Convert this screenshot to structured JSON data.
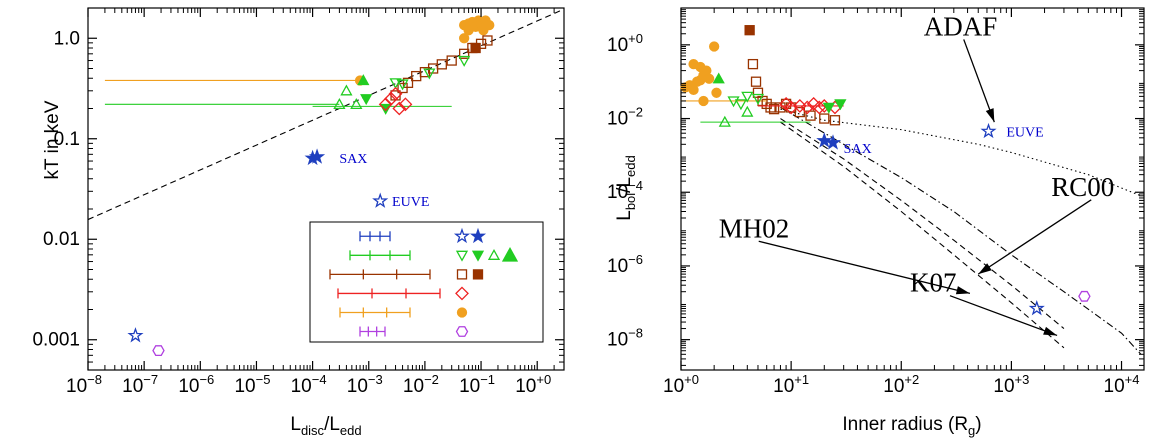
{
  "chart_data": [
    {
      "type": "scatter",
      "xlabel_main": "L",
      "xlabel_sub1": "disc",
      "xlabel_sep": "/L",
      "xlabel_sub2": "edd",
      "ylabel": "kT in keV",
      "xscale": "log",
      "yscale": "log",
      "xlim": [
        1e-08,
        3
      ],
      "ylim": [
        0.0005,
        2
      ],
      "xticks": [
        {
          "v": 1e-08,
          "base": "10",
          "exp": "−8"
        },
        {
          "v": 1e-07,
          "base": "10",
          "exp": "−7"
        },
        {
          "v": 1e-06,
          "base": "10",
          "exp": "−6"
        },
        {
          "v": 1e-05,
          "base": "10",
          "exp": "−5"
        },
        {
          "v": 0.0001,
          "base": "10",
          "exp": "−4"
        },
        {
          "v": 0.001,
          "base": "10",
          "exp": "−3"
        },
        {
          "v": 0.01,
          "base": "10",
          "exp": "−2"
        },
        {
          "v": 0.1,
          "base": "10",
          "exp": "−1"
        },
        {
          "v": 1,
          "base": "10",
          "exp": "+0"
        }
      ],
      "yticks": [
        {
          "v": 0.001,
          "label": "0.001"
        },
        {
          "v": 0.01,
          "label": "0.01"
        },
        {
          "v": 0.1,
          "label": "0.1"
        },
        {
          "v": 1,
          "label": "1.0"
        }
      ],
      "annotations": [
        {
          "text": "SAX",
          "x": 0.0003,
          "y": 0.064
        },
        {
          "text": "EUVE",
          "x": 0.0026,
          "y": 0.024
        }
      ],
      "relation_line": {
        "style": "dashed",
        "color": "#000000",
        "x": [
          1e-08,
          3
        ],
        "y": [
          0.0157,
          1.95
        ]
      },
      "colors": {
        "blue": "#1f3fbf",
        "green": "#22cc22",
        "brown": "#993300",
        "red": "#ee2222",
        "orange": "#f0a020",
        "purple": "#b040e0"
      },
      "series": [
        {
          "color": "orange",
          "marker": "circle-filled",
          "points": [
            [
              0.05,
              1.35
            ],
            [
              0.06,
              1.4
            ],
            [
              0.07,
              1.45
            ],
            [
              0.08,
              1.3
            ],
            [
              0.09,
              1.5
            ],
            [
              0.1,
              1.4
            ],
            [
              0.12,
              1.5
            ],
            [
              0.14,
              1.35
            ],
            [
              0.06,
              1.2
            ],
            [
              0.11,
              1.2
            ],
            [
              0.05,
              1.0
            ],
            [
              0.0007,
              0.38
            ]
          ],
          "err_x": [
            [
              2e-08,
              0.0007,
              0.38
            ]
          ]
        },
        {
          "color": "brown",
          "marker": "square-open",
          "points": [
            [
              0.003,
              0.27
            ],
            [
              0.004,
              0.32
            ],
            [
              0.005,
              0.36
            ],
            [
              0.007,
              0.42
            ],
            [
              0.01,
              0.46
            ],
            [
              0.014,
              0.5
            ],
            [
              0.02,
              0.55
            ],
            [
              0.03,
              0.6
            ],
            [
              0.05,
              0.7
            ],
            [
              0.07,
              0.8
            ],
            [
              0.1,
              0.88
            ],
            [
              0.13,
              0.95
            ]
          ]
        },
        {
          "color": "brown",
          "marker": "square-filled",
          "points": [
            [
              0.08,
              0.8
            ]
          ]
        },
        {
          "color": "green",
          "marker": "tri-up-filled",
          "points": [
            [
              0.0008,
              0.38
            ]
          ]
        },
        {
          "color": "green",
          "marker": "tri-down-open",
          "points": [
            [
              0.003,
              0.36
            ],
            [
              0.004,
              0.35
            ],
            [
              0.012,
              0.45
            ],
            [
              0.05,
              0.6
            ]
          ]
        },
        {
          "color": "green",
          "marker": "tri-down-filled",
          "points": [
            [
              0.002,
              0.2
            ],
            [
              0.0009,
              0.25
            ]
          ]
        },
        {
          "color": "green",
          "marker": "tri-up-open",
          "points": [
            [
              0.0003,
              0.22
            ],
            [
              0.0006,
              0.22
            ],
            [
              0.0004,
              0.3
            ]
          ],
          "err_x": [
            [
              2e-08,
              0.0003,
              0.22
            ],
            [
              0.0001,
              0.03,
              0.21
            ]
          ]
        },
        {
          "color": "red",
          "marker": "diamond-open",
          "points": [
            [
              0.002,
              0.22
            ],
            [
              0.0025,
              0.25
            ],
            [
              0.003,
              0.28
            ],
            [
              0.0035,
              0.2
            ],
            [
              0.0045,
              0.22
            ]
          ]
        },
        {
          "color": "blue",
          "marker": "star-filled",
          "points": [
            [
              0.0001,
              0.064
            ],
            [
              0.00012,
              0.066
            ]
          ]
        },
        {
          "color": "blue",
          "marker": "star-open",
          "points": [
            [
              0.0016,
              0.024
            ],
            [
              7e-08,
              0.0011
            ]
          ]
        },
        {
          "color": "purple",
          "marker": "hexagon-open",
          "points": [
            [
              1.8e-07,
              0.00078
            ]
          ]
        }
      ],
      "legend": {
        "placement": "bottom-right",
        "rows": [
          {
            "color": "blue",
            "markers": [
              "star-open",
              "star-filled"
            ]
          },
          {
            "color": "green",
            "markers": [
              "tri-down-open",
              "tri-down-filled",
              "tri-up-open",
              "tri-up-filled-big"
            ]
          },
          {
            "color": "brown",
            "markers": [
              "square-open",
              "square-filled"
            ]
          },
          {
            "color": "red",
            "markers": [
              "diamond-open"
            ]
          },
          {
            "color": "orange",
            "markers": [
              "circle-filled"
            ]
          },
          {
            "color": "purple",
            "markers": [
              "hexagon-open"
            ]
          }
        ]
      }
    },
    {
      "type": "scatter",
      "xlabel_main": "Inner radius (R",
      "xlabel_sub": "g",
      "xlabel_end": ")",
      "ylabel_main": "L",
      "ylabel_sub1": "bol",
      "ylabel_sep": "/L",
      "ylabel_sub2": "edd",
      "xscale": "log",
      "yscale": "log",
      "xlim": [
        1,
        16000
      ],
      "ylim": [
        1.5e-09,
        10
      ],
      "xticks": [
        {
          "v": 1,
          "base": "10",
          "exp": "+0"
        },
        {
          "v": 10,
          "base": "10",
          "exp": "+1"
        },
        {
          "v": 100,
          "base": "10",
          "exp": "+2"
        },
        {
          "v": 1000,
          "base": "10",
          "exp": "+3"
        },
        {
          "v": 10000,
          "base": "10",
          "exp": "+4"
        }
      ],
      "yticks": [
        {
          "v": 1e-08,
          "base": "10",
          "exp": "−8"
        },
        {
          "v": 1e-06,
          "base": "10",
          "exp": "−6"
        },
        {
          "v": 0.0001,
          "base": "10",
          "exp": "−4"
        },
        {
          "v": 0.01,
          "base": "10",
          "exp": "−2"
        },
        {
          "v": 1,
          "base": "10",
          "exp": "+0"
        }
      ],
      "annotations": [
        {
          "text": "SAX",
          "x": 30,
          "y": 0.0016
        },
        {
          "text": "EUVE",
          "x": 900,
          "y": 0.0045
        }
      ],
      "models": [
        {
          "label": "ADAF",
          "style": "dotted",
          "x": [
            8,
            20,
            100,
            500,
            1000,
            5000,
            15000
          ],
          "y": [
            0.018,
            0.009,
            0.005,
            0.002,
            0.0012,
            0.0003,
            8e-05
          ],
          "label_pos": [
            160,
            1.8
          ],
          "arrow_to": [
            700,
            0.008
          ]
        },
        {
          "label": "RC00",
          "style": "dash-dot",
          "x": [
            8,
            30,
            100,
            300,
            1000,
            3000,
            10000,
            15000
          ],
          "y": [
            0.02,
            0.002,
            0.00025,
            3e-05,
            2e-06,
            2e-07,
            1.5e-08,
            4e-09
          ],
          "label_pos": [
            2300,
            8e-05
          ],
          "arrow_to": [
            500,
            6e-07
          ]
        },
        {
          "label": "MH02",
          "style": "dashed",
          "x": [
            8,
            30,
            100,
            300,
            1000,
            3000
          ],
          "y": [
            0.01,
            0.0008,
            6e-05,
            5e-06,
            3e-07,
            2e-08
          ],
          "label_pos": [
            2.2,
            6e-06
          ],
          "arrow_to": [
            420,
            1.8e-07
          ]
        },
        {
          "label": "K07",
          "style": "dashed",
          "x": [
            8,
            30,
            100,
            300,
            1000,
            3000
          ],
          "y": [
            0.008,
            0.0005,
            3e-05,
            2e-06,
            1e-07,
            6e-09
          ],
          "label_pos": [
            120,
            2e-07
          ],
          "arrow_to": [
            2600,
            1.3e-08
          ]
        }
      ],
      "series": [
        {
          "color": "orange",
          "marker": "circle-filled",
          "points": [
            [
              1.1,
              0.07
            ],
            [
              1.2,
              0.08
            ],
            [
              1.3,
              0.06
            ],
            [
              1.4,
              0.1
            ],
            [
              1.5,
              0.11
            ],
            [
              1.6,
              0.15
            ],
            [
              1.7,
              0.2
            ],
            [
              1.8,
              0.12
            ],
            [
              2,
              0.9
            ],
            [
              1.3,
              0.3
            ],
            [
              1.5,
              0.25
            ],
            [
              2.1,
              0.05
            ],
            [
              1.6,
              0.03
            ]
          ],
          "err_x": [
            [
              1,
              6,
              0.03
            ]
          ]
        },
        {
          "color": "brown",
          "marker": "square-filled",
          "points": [
            [
              4.2,
              2.5
            ]
          ]
        },
        {
          "color": "green",
          "marker": "tri-up-filled",
          "points": [
            [
              2.2,
              0.12
            ]
          ]
        },
        {
          "color": "brown",
          "marker": "square-open",
          "points": [
            [
              4.5,
              0.3
            ],
            [
              4.8,
              0.1
            ],
            [
              5,
              0.05
            ],
            [
              5.5,
              0.03
            ],
            [
              6,
              0.025
            ],
            [
              6.5,
              0.02
            ],
            [
              7,
              0.018
            ],
            [
              8,
              0.02
            ],
            [
              9,
              0.025
            ],
            [
              10,
              0.02
            ],
            [
              12,
              0.015
            ],
            [
              15,
              0.012
            ],
            [
              20,
              0.01
            ],
            [
              25,
              0.009
            ]
          ]
        },
        {
          "color": "green",
          "marker": "tri-down-open",
          "points": [
            [
              3,
              0.03
            ],
            [
              3.5,
              0.025
            ],
            [
              4,
              0.04
            ],
            [
              5,
              0.035
            ]
          ]
        },
        {
          "color": "green",
          "marker": "tri-up-open",
          "points": [
            [
              2.5,
              0.008
            ],
            [
              4,
              0.015
            ]
          ],
          "err_x": [
            [
              1.5,
              15,
              0.008
            ]
          ]
        },
        {
          "color": "red",
          "marker": "diamond-open",
          "points": [
            [
              9,
              0.025
            ],
            [
              10,
              0.02
            ],
            [
              12,
              0.022
            ],
            [
              14,
              0.02
            ],
            [
              16,
              0.025
            ],
            [
              18,
              0.02
            ],
            [
              20,
              0.022
            ],
            [
              25,
              0.02
            ]
          ],
          "err_x": [
            [
              5,
              30,
              0.022
            ]
          ]
        },
        {
          "color": "green",
          "marker": "tri-down-filled",
          "points": [
            [
              22,
              0.02
            ],
            [
              28,
              0.025
            ]
          ]
        },
        {
          "color": "blue",
          "marker": "star-filled",
          "points": [
            [
              20,
              0.0025
            ],
            [
              24,
              0.0022
            ]
          ]
        },
        {
          "color": "blue",
          "marker": "star-open",
          "points": [
            [
              620,
              0.0045
            ],
            [
              1700,
              7e-08
            ]
          ]
        },
        {
          "color": "purple",
          "marker": "hexagon-open",
          "points": [
            [
              4600,
              1.5e-07
            ]
          ]
        }
      ]
    }
  ]
}
